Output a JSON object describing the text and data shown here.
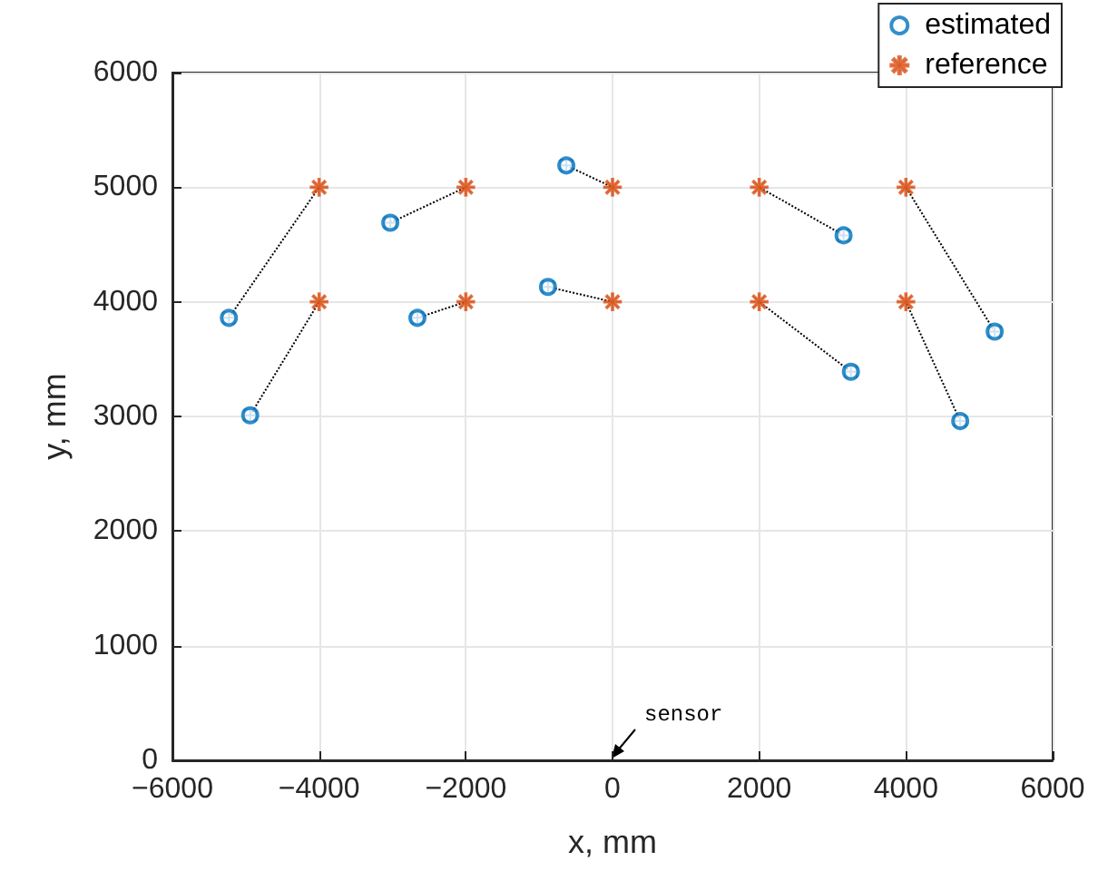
{
  "chart_data": {
    "type": "scatter",
    "xlabel": "x, mm",
    "ylabel": "y, mm",
    "xlim": [
      -6000,
      6000
    ],
    "xticks": [
      -6000,
      -4000,
      -2000,
      0,
      2000,
      4000,
      6000
    ],
    "ylim": [
      0,
      6000
    ],
    "yticks": [
      0,
      1000,
      2000,
      3000,
      4000,
      5000,
      6000
    ],
    "grid": true,
    "legend": "top right",
    "series": [
      {
        "name": "estimated",
        "color": "#0072bd",
        "marker": "circle",
        "x": [
          -5230,
          -4940,
          -3030,
          -2660,
          -880,
          -630,
          3150,
          3250,
          4740,
          5210
        ],
        "values": [
          3860,
          3010,
          4690,
          3860,
          4130,
          5190,
          4580,
          3390,
          2960,
          3740
        ],
        "errors": [
          50,
          50,
          50,
          50,
          50,
          50,
          50,
          50,
          50,
          50
        ],
        "xerrors": [
          80,
          80,
          80,
          80,
          80,
          80,
          80,
          80,
          80,
          80
        ]
      },
      {
        "name": "reference",
        "color": "#d95319",
        "marker": "star",
        "x": [
          -4000,
          -4000,
          -2000,
          -2000,
          0,
          0,
          2000,
          2000,
          4000,
          4000
        ],
        "values": [
          5000,
          4000,
          5000,
          4000,
          5000,
          4000,
          5000,
          4000,
          5000,
          4000
        ]
      },
      {
        "type": "line",
        "color": "#000000",
        "line_style": "dotted",
        "x": [
          -5230,
          -4000
        ],
        "values": [
          3860,
          5000
        ]
      },
      {
        "type": "line",
        "color": "#000000",
        "line_style": "dotted",
        "x": [
          -4940,
          -4000
        ],
        "values": [
          3010,
          4000
        ]
      },
      {
        "type": "line",
        "color": "#000000",
        "line_style": "dotted",
        "x": [
          -3030,
          -2000
        ],
        "values": [
          4690,
          5000
        ]
      },
      {
        "type": "line",
        "color": "#000000",
        "line_style": "dotted",
        "x": [
          -2660,
          -2000
        ],
        "values": [
          3860,
          4000
        ]
      },
      {
        "type": "line",
        "color": "#000000",
        "line_style": "dotted",
        "x": [
          -880,
          0
        ],
        "values": [
          4130,
          4000
        ]
      },
      {
        "type": "line",
        "color": "#000000",
        "line_style": "dotted",
        "x": [
          -630,
          0
        ],
        "values": [
          5190,
          5000
        ]
      },
      {
        "type": "line",
        "color": "#000000",
        "line_style": "dotted",
        "x": [
          3150,
          2000
        ],
        "values": [
          4580,
          5000
        ]
      },
      {
        "type": "line",
        "color": "#000000",
        "line_style": "dotted",
        "x": [
          3250,
          2000
        ],
        "values": [
          3390,
          4000
        ]
      },
      {
        "type": "line",
        "color": "#000000",
        "line_style": "dotted",
        "x": [
          4740,
          4000
        ],
        "values": [
          2960,
          4000
        ]
      },
      {
        "type": "line",
        "color": "#000000",
        "line_style": "dotted",
        "x": [
          5210,
          4000
        ],
        "values": [
          3740,
          5000
        ]
      }
    ],
    "annotations": [
      "sensor"
    ]
  }
}
